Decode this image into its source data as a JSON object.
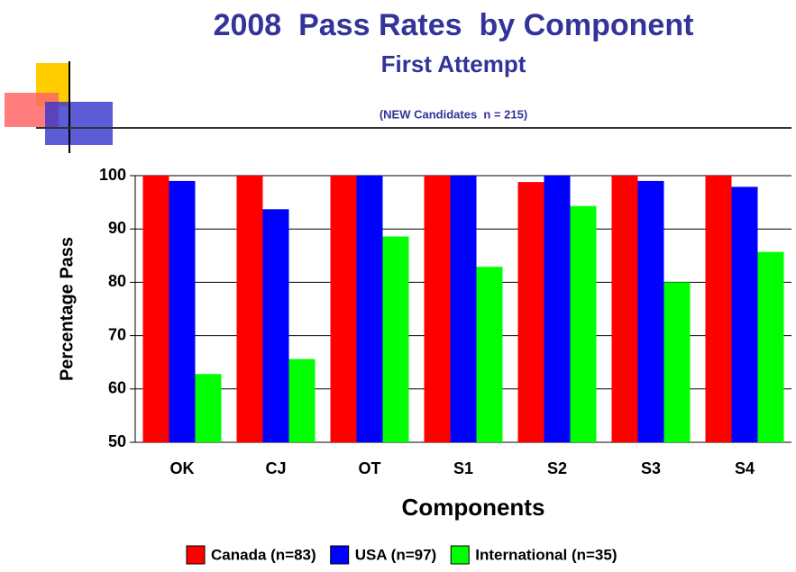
{
  "chart_data": {
    "type": "bar",
    "title": "2008  Pass Rates  by Component",
    "subtitle": "First Attempt",
    "note": "(NEW Candidates  n = 215)",
    "xlabel": "Components",
    "ylabel": "Percentage Pass",
    "categories": [
      "OK",
      "CJ",
      "OT",
      "S1",
      "S2",
      "S3",
      "S4"
    ],
    "series": [
      {
        "name": "Canada (n=83)",
        "color": "#ff0000",
        "values": [
          100,
          100,
          100,
          100,
          98.8,
          100,
          100
        ]
      },
      {
        "name": "USA (n=97)",
        "color": "#0000ff",
        "values": [
          99,
          93.7,
          100,
          100,
          100,
          99,
          97.9
        ]
      },
      {
        "name": "International (n=35)",
        "color": "#00ff00",
        "values": [
          62.8,
          65.6,
          88.6,
          82.9,
          94.3,
          80,
          85.7
        ]
      }
    ],
    "ylim": [
      50,
      100
    ],
    "yticks": [
      50,
      60,
      70,
      80,
      90,
      100
    ],
    "grid": true,
    "legend": "bottom"
  }
}
